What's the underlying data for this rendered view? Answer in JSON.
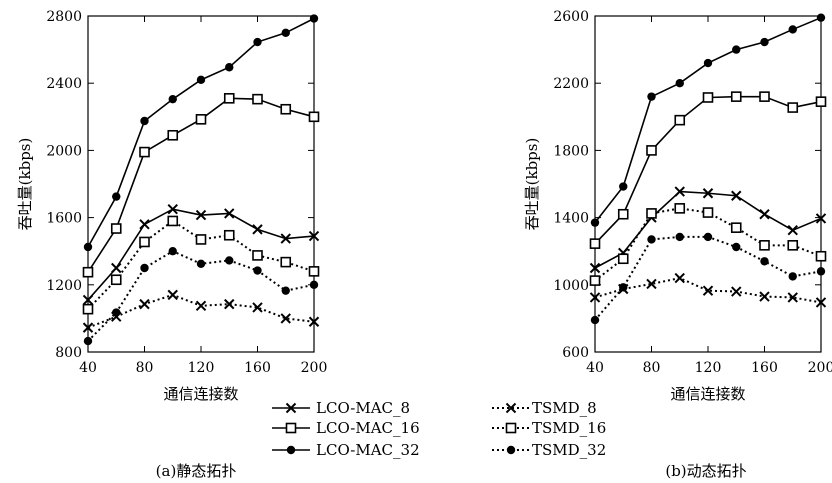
{
  "chart_data": [
    {
      "type": "line",
      "caption": "(a)静态拓扑",
      "xlabel": "通信连接数",
      "ylabel": "吞吐量(kbps)",
      "x": [
        40,
        60,
        80,
        100,
        120,
        140,
        160,
        180,
        200
      ],
      "xlim": [
        40,
        200
      ],
      "ylim": [
        800,
        2800
      ],
      "xticks": [
        40,
        80,
        120,
        160,
        200
      ],
      "yticks": [
        800,
        1200,
        1600,
        2000,
        2400,
        2800
      ],
      "grid": false,
      "series": [
        {
          "name": "LCO-MAC_8",
          "marker": "x",
          "dash": "solid",
          "values": [
            1110,
            1300,
            1560,
            1650,
            1615,
            1625,
            1530,
            1475,
            1490
          ]
        },
        {
          "name": "LCO-MAC_16",
          "marker": "square",
          "dash": "solid",
          "values": [
            1275,
            1535,
            1990,
            2090,
            2185,
            2310,
            2305,
            2245,
            2200
          ]
        },
        {
          "name": "LCO-MAC_32",
          "marker": "circle",
          "dash": "solid",
          "values": [
            1425,
            1725,
            2175,
            2305,
            2420,
            2495,
            2645,
            2700,
            2785
          ]
        },
        {
          "name": "TSMD_8",
          "marker": "x",
          "dash": "dotted",
          "values": [
            945,
            1010,
            1085,
            1140,
            1075,
            1085,
            1065,
            1000,
            980
          ]
        },
        {
          "name": "TSMD_16",
          "marker": "square",
          "dash": "dotted",
          "values": [
            1055,
            1230,
            1455,
            1580,
            1470,
            1495,
            1375,
            1335,
            1280
          ]
        },
        {
          "name": "TSMD_32",
          "marker": "circle",
          "dash": "dotted",
          "values": [
            865,
            1035,
            1300,
            1400,
            1325,
            1345,
            1285,
            1165,
            1200
          ]
        }
      ]
    },
    {
      "type": "line",
      "caption": "(b)动态拓扑",
      "xlabel": "通信连接数",
      "ylabel": "吞吐量(kbps)",
      "x": [
        40,
        60,
        80,
        100,
        120,
        140,
        160,
        180,
        200
      ],
      "xlim": [
        40,
        200
      ],
      "ylim": [
        600,
        2600
      ],
      "xticks": [
        40,
        80,
        120,
        160,
        200
      ],
      "yticks": [
        600,
        1000,
        1400,
        1800,
        2200,
        2600
      ],
      "grid": false,
      "series": [
        {
          "name": "LCO-MAC_8",
          "marker": "x",
          "dash": "solid",
          "values": [
            1100,
            1190,
            1400,
            1555,
            1545,
            1530,
            1420,
            1325,
            1395
          ]
        },
        {
          "name": "LCO-MAC_16",
          "marker": "square",
          "dash": "solid",
          "values": [
            1245,
            1420,
            1800,
            1980,
            2115,
            2120,
            2120,
            2055,
            2090
          ]
        },
        {
          "name": "LCO-MAC_32",
          "marker": "circle",
          "dash": "solid",
          "values": [
            1370,
            1585,
            2120,
            2200,
            2320,
            2400,
            2445,
            2520,
            2590
          ]
        },
        {
          "name": "TSMD_8",
          "marker": "x",
          "dash": "dotted",
          "values": [
            925,
            975,
            1005,
            1040,
            965,
            960,
            930,
            925,
            895
          ]
        },
        {
          "name": "TSMD_16",
          "marker": "square",
          "dash": "dotted",
          "values": [
            1025,
            1155,
            1425,
            1455,
            1430,
            1340,
            1235,
            1235,
            1170
          ]
        },
        {
          "name": "TSMD_32",
          "marker": "circle",
          "dash": "dotted",
          "values": [
            790,
            985,
            1270,
            1285,
            1285,
            1225,
            1140,
            1050,
            1080
          ]
        }
      ]
    }
  ],
  "legend": {
    "placement": "bottom-center",
    "entries": [
      "LCO-MAC_8",
      "LCO-MAC_16",
      "LCO-MAC_32",
      "TSMD_8",
      "TSMD_16",
      "TSMD_32"
    ]
  },
  "colors": {
    "line": "#000000",
    "background": "#ffffff"
  }
}
